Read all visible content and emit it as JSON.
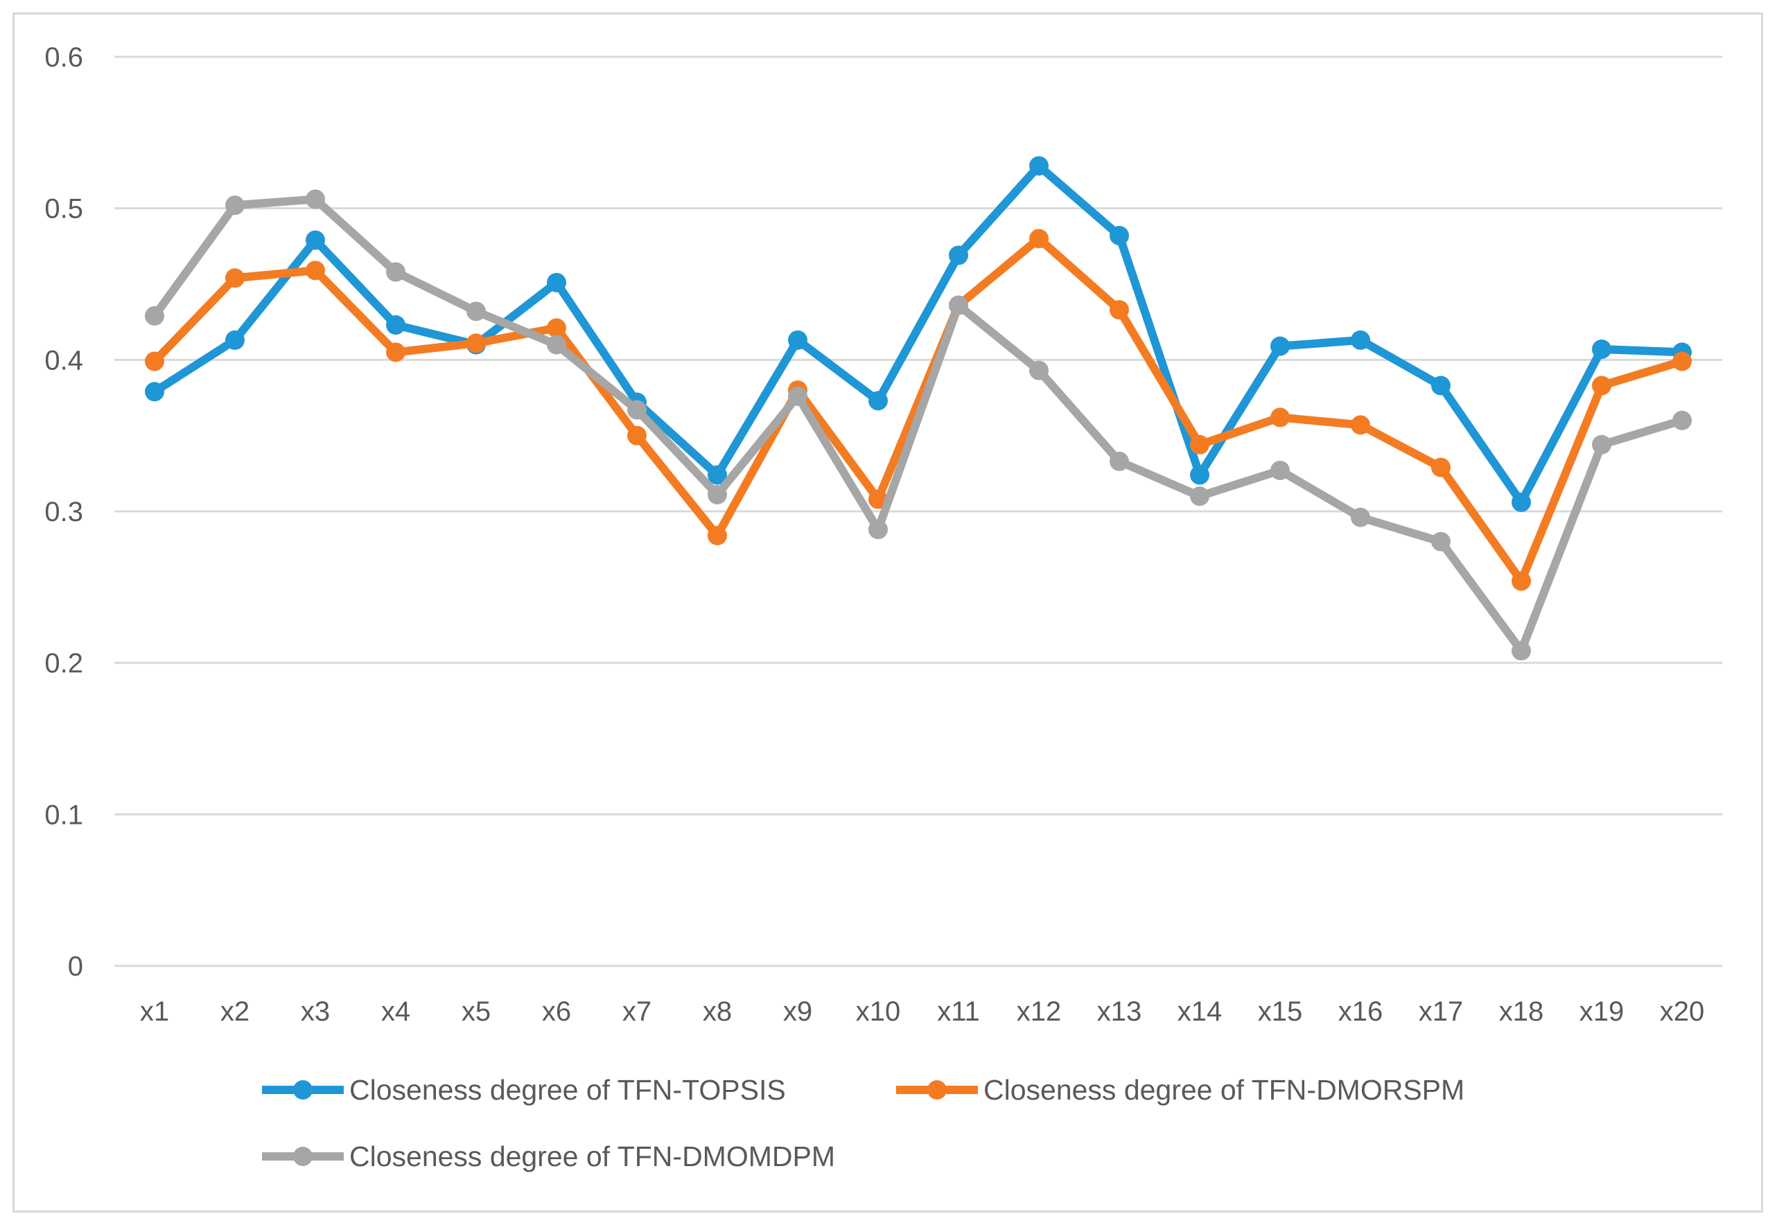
{
  "chart_data": {
    "type": "line",
    "title": "",
    "xlabel": "",
    "ylabel": "",
    "ylim": [
      0,
      0.6
    ],
    "yticks": [
      0,
      0.1,
      0.2,
      0.3,
      0.4,
      0.5,
      0.6
    ],
    "ytick_labels": [
      "0",
      "0.1",
      "0.2",
      "0.3",
      "0.4",
      "0.5",
      "0.6"
    ],
    "grid": true,
    "legend_position": "bottom",
    "categories": [
      "x1",
      "x2",
      "x3",
      "x4",
      "x5",
      "x6",
      "x7",
      "x8",
      "x9",
      "x10",
      "x11",
      "x12",
      "x13",
      "x14",
      "x15",
      "x16",
      "x17",
      "x18",
      "x19",
      "x20"
    ],
    "series": [
      {
        "name": "Closeness degree of TFN-TOPSIS",
        "color": "#1f96d6",
        "values": [
          0.379,
          0.413,
          0.479,
          0.423,
          0.41,
          0.451,
          0.372,
          0.324,
          0.413,
          0.373,
          0.469,
          0.528,
          0.482,
          0.324,
          0.409,
          0.413,
          0.383,
          0.306,
          0.407,
          0.405
        ]
      },
      {
        "name": "Closeness degree of TFN-DMORSPM",
        "color": "#f37c23",
        "values": [
          0.399,
          0.454,
          0.459,
          0.405,
          0.411,
          0.421,
          0.35,
          0.284,
          0.38,
          0.308,
          0.436,
          0.48,
          0.433,
          0.344,
          0.362,
          0.357,
          0.329,
          0.254,
          0.383,
          0.399
        ]
      },
      {
        "name": "Closeness degree of TFN-DMOMDPM",
        "color": "#a6a6a6",
        "values": [
          0.429,
          0.502,
          0.506,
          0.458,
          0.432,
          0.41,
          0.367,
          0.311,
          0.376,
          0.288,
          0.436,
          0.393,
          0.333,
          0.31,
          0.327,
          0.296,
          0.28,
          0.208,
          0.344,
          0.36
        ]
      }
    ]
  }
}
